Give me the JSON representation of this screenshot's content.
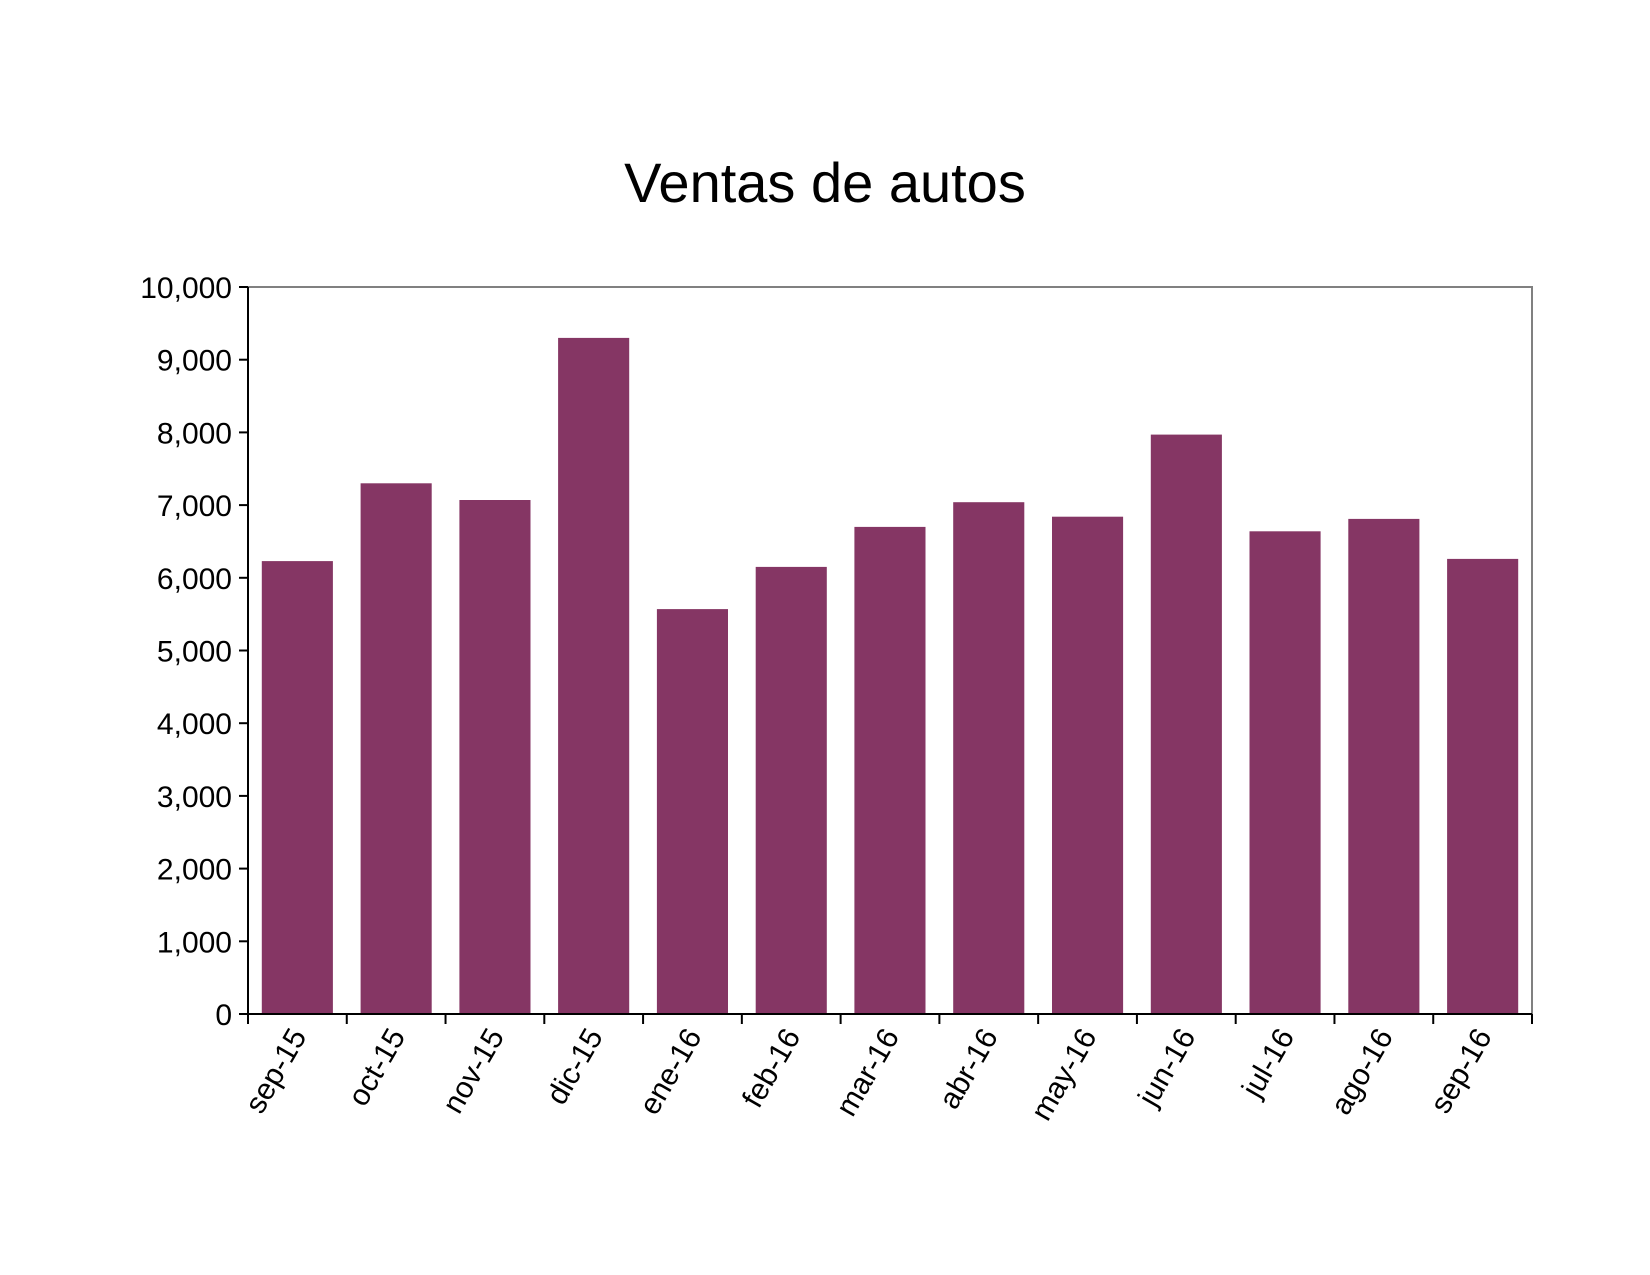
{
  "chart_data": {
    "type": "bar",
    "title": "Ventas de autos",
    "xlabel": "",
    "ylabel": "",
    "categories": [
      "sep-15",
      "oct-15",
      "nov-15",
      "dic-15",
      "ene-16",
      "feb-16",
      "mar-16",
      "abr-16",
      "may-16",
      "jun-16",
      "jul-16",
      "ago-16",
      "sep-16"
    ],
    "values": [
      6230,
      7300,
      7070,
      9300,
      5570,
      6150,
      6700,
      7040,
      6840,
      7970,
      6640,
      6810,
      6260
    ],
    "ylim": [
      0,
      10000
    ],
    "yticks": [
      "0",
      "1,000",
      "2,000",
      "3,000",
      "4,000",
      "5,000",
      "6,000",
      "7,000",
      "8,000",
      "9,000",
      "10,000"
    ],
    "grid": false,
    "legend": "none",
    "bar_color": "#853664",
    "axis_color": "#000000",
    "frame_color": "#808080"
  }
}
